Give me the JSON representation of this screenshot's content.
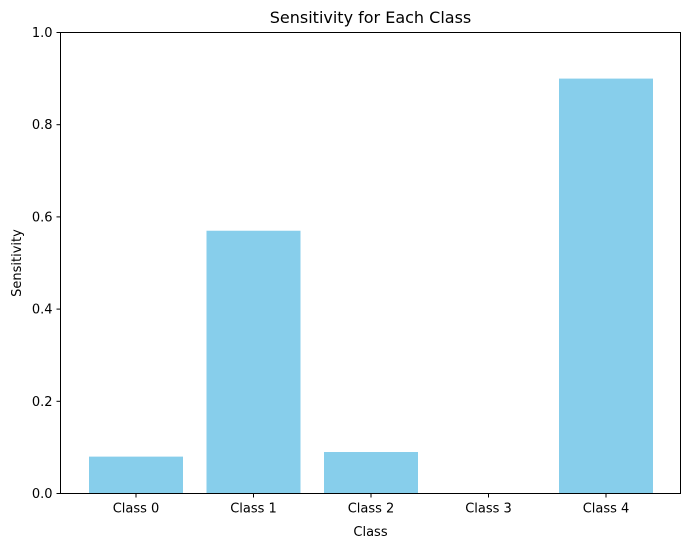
{
  "chart_data": {
    "type": "bar",
    "title": "Sensitivity for Each Class",
    "xlabel": "Class",
    "ylabel": "Sensitivity",
    "categories": [
      "Class 0",
      "Class 1",
      "Class 2",
      "Class 3",
      "Class 4"
    ],
    "values": [
      0.08,
      0.57,
      0.09,
      0.0,
      0.9
    ],
    "ylim": [
      0,
      1
    ],
    "yticks": [
      "0.0",
      "0.2",
      "0.4",
      "0.6",
      "0.8",
      "1.0"
    ],
    "grid": false,
    "bar_color": "#87ceeb"
  }
}
